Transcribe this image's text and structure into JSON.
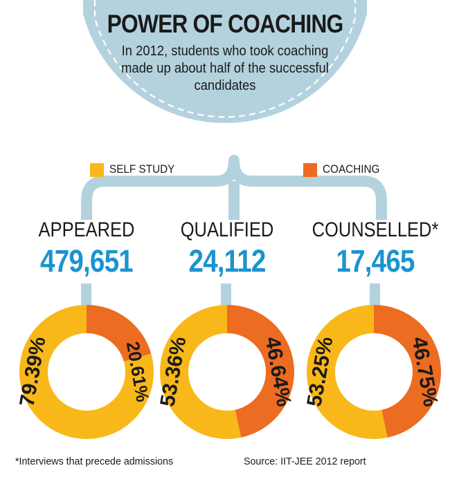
{
  "header": {
    "title": "POWER OF COACHING",
    "subtitle": "In 2012, students who took coaching made up about half of the successful candidates"
  },
  "legend": {
    "self_study": "SELF STUDY",
    "coaching": "COACHING"
  },
  "stats": [
    {
      "label": "APPEARED",
      "value": "479,651"
    },
    {
      "label": "QUALIFIED",
      "value": "24,112"
    },
    {
      "label": "COUNSELLED*",
      "value": "17,465"
    }
  ],
  "colors": {
    "self_study": "#f9b81a",
    "coaching": "#ec6c22",
    "accent_blue": "#1c93cf",
    "bubble": "#b4d2de",
    "bubble_stroke": "#9fc3d2"
  },
  "chart_data": [
    {
      "type": "pie",
      "donut": true,
      "group": "APPEARED",
      "categories": [
        "SELF STUDY",
        "COACHING"
      ],
      "values": [
        79.39,
        20.61
      ],
      "labels": [
        "79.39%",
        "20.61%"
      ]
    },
    {
      "type": "pie",
      "donut": true,
      "group": "QUALIFIED",
      "categories": [
        "SELF STUDY",
        "COACHING"
      ],
      "values": [
        53.36,
        46.64
      ],
      "labels": [
        "53.36%",
        "46.64%"
      ]
    },
    {
      "type": "pie",
      "donut": true,
      "group": "COUNSELLED*",
      "categories": [
        "SELF STUDY",
        "COACHING"
      ],
      "values": [
        53.25,
        46.75
      ],
      "labels": [
        "53.25%",
        "46.75%"
      ]
    }
  ],
  "footer": {
    "note": "*Interviews that precede admissions",
    "source": "Source: IIT-JEE 2012 report"
  }
}
